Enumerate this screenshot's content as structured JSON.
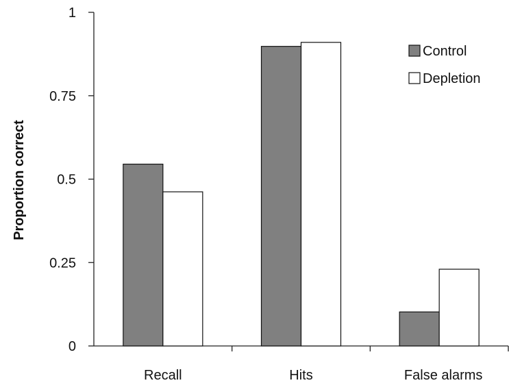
{
  "chart_data": {
    "type": "bar",
    "title": "",
    "xlabel": "",
    "ylabel": "Proportion correct",
    "categories": [
      "Recall",
      "Hits",
      "False alarms"
    ],
    "series": [
      {
        "name": "Control",
        "values": [
          0.545,
          0.898,
          0.102
        ],
        "color": "#808080"
      },
      {
        "name": "Depletion",
        "values": [
          0.462,
          0.91,
          0.23
        ],
        "color": "#ffffff"
      }
    ],
    "ylim": [
      0,
      1
    ],
    "yticks": [
      0,
      0.25,
      0.5,
      0.75,
      1
    ],
    "ytick_labels": [
      "0",
      "0.25",
      "0.5",
      "0.75",
      "1"
    ],
    "grid": false,
    "legend_position": "top-right"
  }
}
